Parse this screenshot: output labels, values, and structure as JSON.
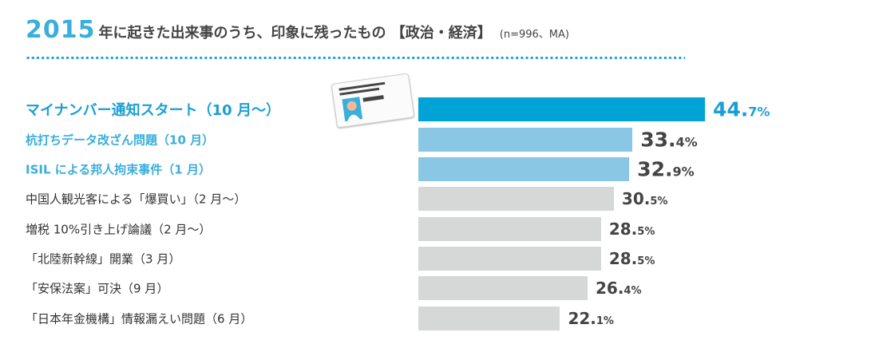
{
  "title": {
    "year": "2015",
    "text": "年に起きた出来事のうち、印象に残ったもの 【政治・経済】",
    "note": "(n=996、MA)"
  },
  "colors": {
    "top": "#00a3d6",
    "highlight": "#8ac7e4",
    "normal": "#d6d7d7"
  },
  "chart_data": {
    "type": "bar",
    "orientation": "horizontal",
    "xlim": [
      0,
      50
    ],
    "unit": "%",
    "categories": [
      "マイナンバー通知スタート（10 月〜）",
      "杭打ちデータ改ざん問題（10 月）",
      "ISIL による邦人拘束事件（1 月）",
      "中国人観光客による「爆買い」（2 月〜）",
      "増税 10%引き上げ論議（2 月〜）",
      "「北陸新幹線」開業（3 月）",
      "「安保法案」可決（9 月）",
      "「日本年金機構」情報漏えい問題（6 月）"
    ],
    "values": [
      44.7,
      33.4,
      32.9,
      30.5,
      28.5,
      28.5,
      26.4,
      22.1
    ],
    "labels": [
      {
        "i": "44.",
        "d": "7%"
      },
      {
        "i": "33.",
        "d": "4%"
      },
      {
        "i": "32.",
        "d": "9%"
      },
      {
        "i": "30.",
        "d": "5%"
      },
      {
        "i": "28.",
        "d": "5%"
      },
      {
        "i": "28.",
        "d": "5%"
      },
      {
        "i": "26.",
        "d": "4%"
      },
      {
        "i": "22.",
        "d": "1%"
      }
    ],
    "emphasis": [
      "top",
      "highlight",
      "highlight",
      "normal",
      "normal",
      "normal",
      "normal",
      "normal"
    ]
  }
}
